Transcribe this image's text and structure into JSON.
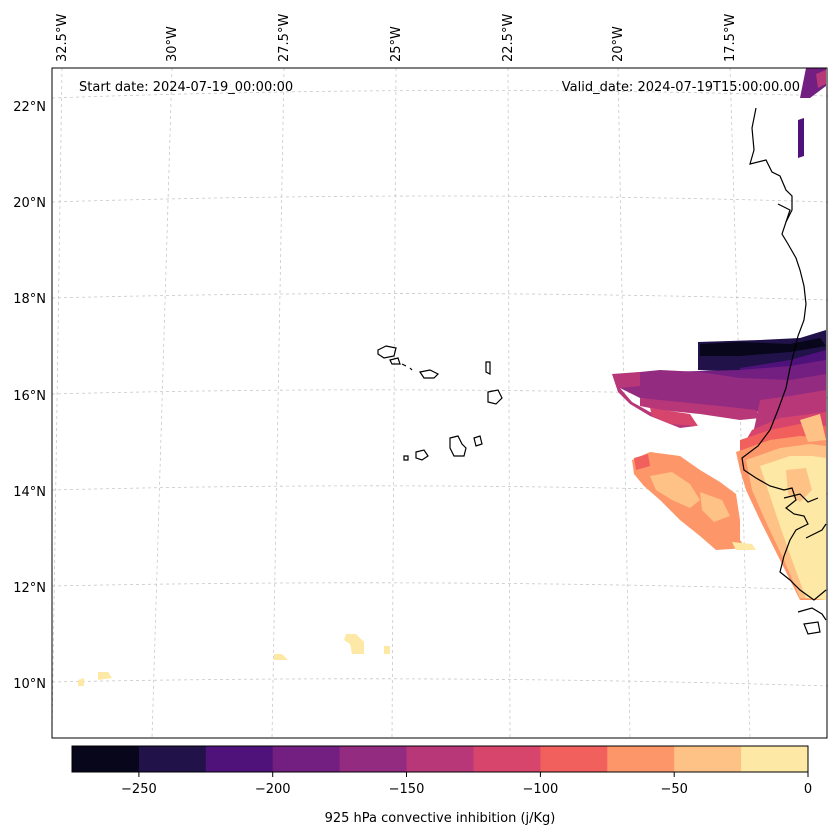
{
  "map": {
    "start_date": "Start date: 2024-07-19_00:00:00",
    "valid_date": "Valid_date: 2024-07-19T15:00:00.00",
    "lon_labels": [
      "32.5°W",
      "30°W",
      "27.5°W",
      "25°W",
      "22.5°W",
      "20°W",
      "17.5°W"
    ],
    "lat_labels": [
      "22°N",
      "20°N",
      "18°N",
      "16°N",
      "14°N",
      "12°N",
      "10°N"
    ]
  },
  "colorbar": {
    "label": "925 hPa convective inhibition (j/Kg)",
    "tick_labels": [
      "−250",
      "−200",
      "−150",
      "−100",
      "−50",
      "0"
    ],
    "levels": [
      -275,
      -250,
      -225,
      -200,
      -175,
      -150,
      -125,
      -100,
      -75,
      -50,
      -25,
      0
    ],
    "colors": [
      "#07061a",
      "#21124a",
      "#4f127b",
      "#721f81",
      "#932b80",
      "#b73779",
      "#d8456c",
      "#f1605d",
      "#fd9668",
      "#fec287",
      "#fde9a5"
    ]
  },
  "legend": {
    "colors": {
      "fill_0": "#fde9a5",
      "fill_1": "#fec287",
      "fill_2": "#fd9668",
      "fill_3": "#f1605d",
      "fill_4": "#d8456c",
      "fill_5": "#b73779",
      "fill_6": "#932b80",
      "fill_7": "#721f81",
      "fill_8": "#4f127b",
      "fill_9": "#21124a",
      "fill_10": "#07061a"
    }
  }
}
